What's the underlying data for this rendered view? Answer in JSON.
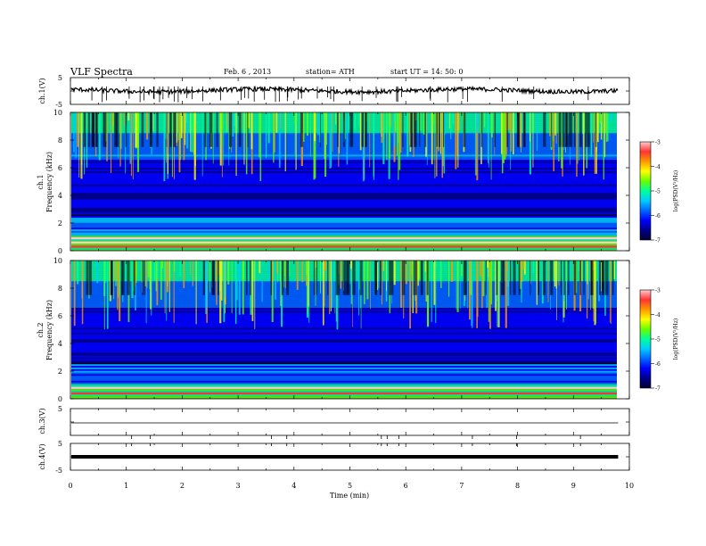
{
  "header": {
    "title": "VLF  Spectra",
    "date": "Feb. 6  , 2013",
    "station": "station= ATH",
    "start": "start  UT  =    14: 50: 0"
  },
  "chart_data": [
    {
      "type": "line",
      "name": "ch1-waveform",
      "ylabel": "ch.1(V)",
      "ylim": [
        -5,
        5
      ],
      "yticks": [
        "5",
        "-5"
      ],
      "level": 0.2
    },
    {
      "type": "heatmap",
      "name": "ch1-spectrogram",
      "ylabel": "Frequency (kHz)",
      "channel_label": "ch.1",
      "ylim": [
        0,
        10
      ],
      "yticks": [
        "0",
        "2",
        "4",
        "6",
        "8",
        "10"
      ],
      "colorbar": {
        "label": "log(PSD(V²/Hz)",
        "range": [
          -7,
          -3
        ],
        "ticks": [
          "-3",
          "-4",
          "-5",
          "-6",
          "-7"
        ]
      },
      "strong_bands_khz": [
        0.3,
        0.6,
        0.9
      ]
    },
    {
      "type": "heatmap",
      "name": "ch2-spectrogram",
      "ylabel": "Frequency (kHz)",
      "channel_label": "ch.2",
      "ylim": [
        0,
        10
      ],
      "yticks": [
        "0",
        "2",
        "4",
        "6",
        "8",
        "10"
      ],
      "colorbar": {
        "label": "log(PSD(V²/Hz)",
        "range": [
          -7,
          -3
        ],
        "ticks": [
          "-3",
          "-4",
          "-5",
          "-6",
          "-7"
        ]
      },
      "strong_bands_khz": [
        0.4,
        0.8
      ]
    },
    {
      "type": "line",
      "name": "ch3-waveform",
      "ylabel": "ch.3(V)",
      "ylim": [
        -5,
        5
      ],
      "yticks": [
        "5",
        ""
      ],
      "level": 0.0
    },
    {
      "type": "line",
      "name": "ch4-waveform",
      "ylabel": "ch.4(V)",
      "ylim": [
        -5,
        5
      ],
      "yticks": [
        "5",
        "-5"
      ],
      "level": 0.0
    }
  ],
  "x_axis": {
    "label": "Time  (min)",
    "range": [
      0,
      10
    ],
    "data_end": 9.8,
    "ticks": [
      "0",
      "1",
      "2",
      "3",
      "4",
      "5",
      "6",
      "7",
      "8",
      "9",
      "10"
    ]
  },
  "colors": {
    "colormap": [
      "#000033",
      "#00008b",
      "#0000ff",
      "#0066ff",
      "#00ccff",
      "#00ff99",
      "#66ff00",
      "#ffff00",
      "#ff9900",
      "#ff3333",
      "#ffcccc"
    ]
  }
}
